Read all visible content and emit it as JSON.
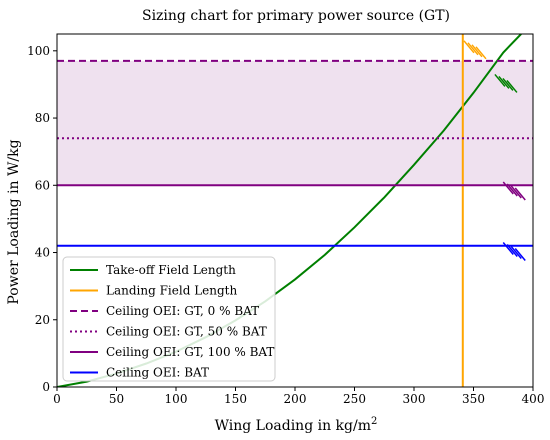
{
  "chart_data": {
    "type": "line",
    "title": "Sizing chart for primary power source (GT)",
    "xlabel": "Wing Loading in kg/m",
    "xlabel_superscript": "2",
    "ylabel": "Power Loading in W/kg",
    "xlim": [
      0,
      400
    ],
    "ylim": [
      0,
      105
    ],
    "xticks": [
      "0",
      "50",
      "100",
      "150",
      "200",
      "250",
      "300",
      "350",
      "400"
    ],
    "yticks": [
      "0",
      "20",
      "40",
      "60",
      "80",
      "100"
    ],
    "grid": false,
    "legend_position": "lower-left",
    "shaded_band": {
      "y_from": 60,
      "y_to": 97,
      "color": "#efe1ef"
    },
    "series": [
      {
        "name": "Take-off Field Length",
        "kind": "curve",
        "color": "#008000",
        "style": "solid",
        "x": [
          0,
          25,
          50,
          75,
          100,
          125,
          150,
          175,
          200,
          225,
          250,
          275,
          300,
          325,
          350,
          375,
          390
        ],
        "y": [
          0,
          1.6,
          4.0,
          7.0,
          10.5,
          14.8,
          19.8,
          25.5,
          32.0,
          39.3,
          47.5,
          56.4,
          66.1,
          76.3,
          87.5,
          99.5,
          105
        ]
      },
      {
        "name": "Landing Field Length",
        "kind": "vline",
        "color": "#ffa500",
        "style": "solid",
        "x": 341
      },
      {
        "name": "Ceiling OEI: GT, 0 % BAT",
        "kind": "hline",
        "color": "#800080",
        "style": "dashed",
        "y": 97
      },
      {
        "name": "Ceiling OEI: GT, 50 % BAT",
        "kind": "hline",
        "color": "#800080",
        "style": "dotted",
        "y": 74
      },
      {
        "name": "Ceiling OEI: GT, 100 % BAT",
        "kind": "hline",
        "color": "#800080",
        "style": "solid",
        "y": 60
      },
      {
        "name": "Ceiling OEI: BAT",
        "kind": "hline",
        "color": "#0000ff",
        "style": "solid",
        "y": 42
      }
    ],
    "constraint_hatches": [
      {
        "series": "Landing Field Length",
        "x": 342,
        "y": 100,
        "color": "#ffa500"
      },
      {
        "series": "Take-off Field Length",
        "x": 368,
        "y": 90,
        "color": "#008000"
      },
      {
        "series": "Ceiling OEI: GT, 100 % BAT",
        "x": 375,
        "y": 58,
        "color": "#800080"
      },
      {
        "series": "Ceiling OEI: BAT",
        "x": 375,
        "y": 40,
        "color": "#0000ff"
      }
    ]
  }
}
